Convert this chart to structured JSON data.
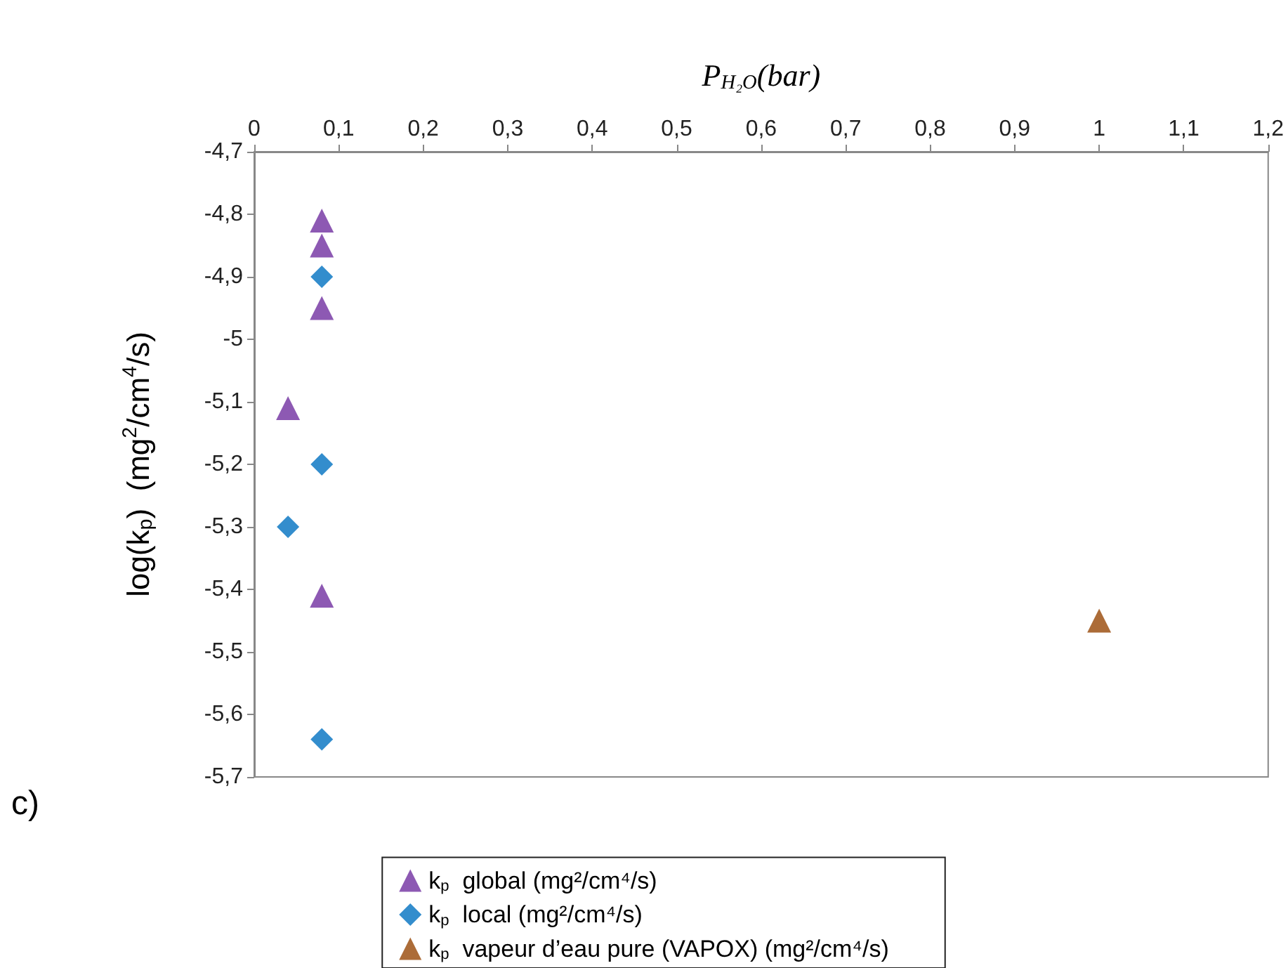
{
  "chart_data": {
    "type": "scatter",
    "xlabel": "P$_{H₂O}$(bar)",
    "ylabel": "log(k$_{p}$)  (mg$^{2}$/cm$^{4}$/s)",
    "annotations": [
      "c)"
    ],
    "xlim": [
      0,
      1.2
    ],
    "xticks": [
      0,
      {
        "value": 0.1,
        "label": "0,1"
      },
      {
        "value": 0.2,
        "label": "0,2"
      },
      {
        "value": 0.3,
        "label": "0,3"
      },
      {
        "value": 0.4,
        "label": "0,4"
      },
      {
        "value": 0.5,
        "label": "0,5"
      },
      {
        "value": 0.6,
        "label": "0,6"
      },
      {
        "value": 0.7,
        "label": "0,7"
      },
      {
        "value": 0.8,
        "label": "0,8"
      },
      {
        "value": 0.9,
        "label": "0,9"
      },
      1,
      {
        "value": 1.1,
        "label": "1,1"
      },
      {
        "value": 1.2,
        "label": "1,2"
      }
    ],
    "ylim": [
      -5.7,
      -4.7
    ],
    "yticks": [
      {
        "value": -5.7,
        "label": "-5,7"
      },
      {
        "value": -5.6,
        "label": "-5,6"
      },
      {
        "value": -5.5,
        "label": "-5,5"
      },
      {
        "value": -5.4,
        "label": "-5,4"
      },
      {
        "value": -5.3,
        "label": "-5,3"
      },
      {
        "value": -5.2,
        "label": "-5,2"
      },
      {
        "value": -5.1,
        "label": "-5,1"
      },
      -5,
      {
        "value": -4.9,
        "label": "-4,9"
      },
      {
        "value": -4.8,
        "label": "-4,8"
      },
      {
        "value": -4.7,
        "label": "-4,7"
      }
    ],
    "grid": false,
    "legend": "bottom",
    "series": [
      {
        "name": "k$_{p}$  global (mg²/cm⁴/s)",
        "color": "#7030a0",
        "marker": "triangle",
        "x": [
          0.08,
          0.08,
          0.08,
          0.04,
          0.08
        ],
        "values": [
          -4.81,
          -4.85,
          -4.95,
          -5.11,
          -5.41
        ]
      },
      {
        "name": "k$_{p}$  local (mg²/cm⁴/s)",
        "color": "#0070c0",
        "marker": "diamond",
        "x": [
          0.08,
          0.08,
          0.04,
          0.08
        ],
        "values": [
          -4.9,
          -5.2,
          -5.3,
          -5.64
        ]
      },
      {
        "name": "k$_{p}$  vapeur d’eau pure (VAPOX) (mg²/cm⁴/s)",
        "color": "#974706",
        "marker": "triangle",
        "x": [
          1
        ],
        "values": [
          -5.45
        ]
      }
    ]
  }
}
